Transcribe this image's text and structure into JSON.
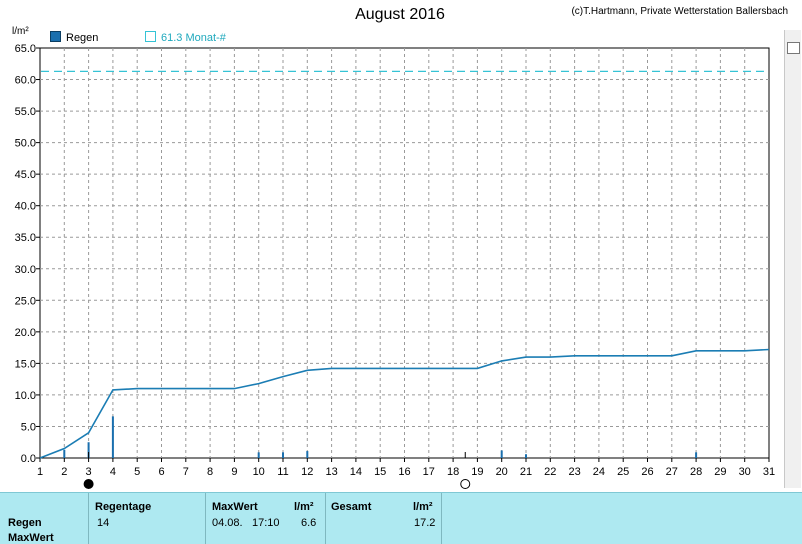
{
  "header": {
    "title": "August 2016",
    "credit": "(c)T.Hartmann, Private Wetterstation Ballersbach",
    "unit": "l/m²"
  },
  "legend": [
    {
      "label": "Regen",
      "color": "#1a6fae",
      "style": "filled"
    },
    {
      "label": "61.3 Monat-#",
      "color": "#35c3d5",
      "style": "outline"
    }
  ],
  "chart_data": {
    "type": "bar+line",
    "title": "August 2016",
    "ylabel": "l/m²",
    "xlim": [
      1,
      31
    ],
    "ylim": [
      0,
      65
    ],
    "x_ticks": [
      1,
      2,
      3,
      4,
      5,
      6,
      7,
      8,
      9,
      10,
      11,
      12,
      13,
      14,
      15,
      16,
      17,
      18,
      19,
      20,
      21,
      22,
      23,
      24,
      25,
      26,
      27,
      28,
      29,
      30,
      31
    ],
    "y_ticks": [
      "0.0",
      "5.0",
      "10.0",
      "15.0",
      "20.0",
      "25.0",
      "30.0",
      "35.0",
      "40.0",
      "45.0",
      "50.0",
      "55.0",
      "60.0",
      "65.0"
    ],
    "grid": true,
    "daily_rain": [
      {
        "x": 2,
        "y": 1.3
      },
      {
        "x": 3,
        "y": 2.5
      },
      {
        "x": 4,
        "y": 6.6
      },
      {
        "x": 10,
        "y": 0.9
      },
      {
        "x": 11,
        "y": 0.9
      },
      {
        "x": 12,
        "y": 1.1
      },
      {
        "x": 20,
        "y": 1.2
      },
      {
        "x": 21,
        "y": 0.6
      },
      {
        "x": 28,
        "y": 0.9
      }
    ],
    "cumulative": {
      "x": [
        1,
        2,
        3,
        4,
        5,
        6,
        7,
        8,
        9,
        10,
        11,
        12,
        13,
        14,
        15,
        16,
        17,
        18,
        19,
        20,
        21,
        22,
        23,
        24,
        25,
        26,
        27,
        28,
        29,
        30,
        31
      ],
      "y": [
        0,
        1.5,
        4,
        10.8,
        11,
        11,
        11,
        11,
        11,
        11.8,
        12.9,
        13.9,
        14.2,
        14.2,
        14.2,
        14.2,
        14.2,
        14.2,
        14.2,
        15.4,
        16,
        16,
        16.2,
        16.2,
        16.2,
        16.2,
        16.2,
        17,
        17,
        17,
        17.2
      ]
    },
    "reference_line": {
      "label": "61.3 Monat-#",
      "y": 61.3
    },
    "moon_markers": [
      {
        "x": 3,
        "phase": "new"
      },
      {
        "x": 18.5,
        "phase": "full"
      }
    ]
  },
  "stats": {
    "row_labels": [
      "Regen",
      "MaxWert"
    ],
    "regentage_header": "Regentage",
    "regentage_value": "14",
    "maxwert_header": "MaxWert",
    "maxwert_unit": "l/m²",
    "maxwert_date": "04.08.",
    "maxwert_time": "17:10",
    "maxwert_value": "6.6",
    "gesamt_header": "Gesamt",
    "gesamt_unit": "l/m²",
    "gesamt_value": "17.2"
  }
}
